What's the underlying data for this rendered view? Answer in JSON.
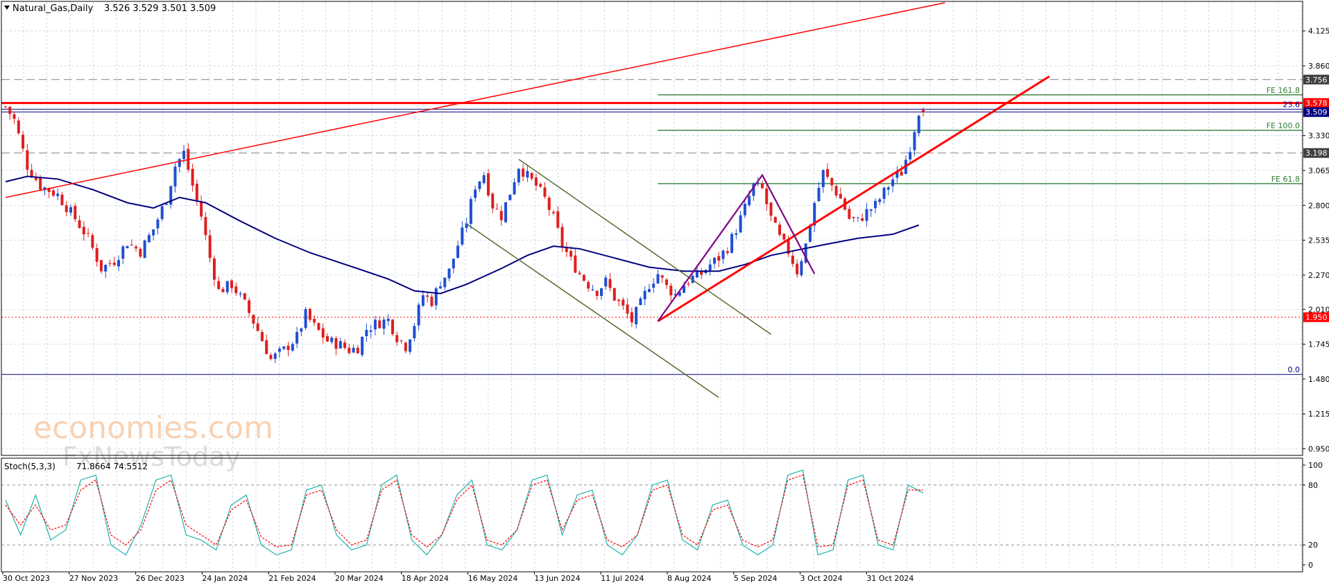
{
  "header": {
    "symbol": "Natural_Gas,Daily",
    "ohlc": "3.526 3.529 3.501 3.509"
  },
  "watermark": {
    "brand": "economies.com",
    "sub": "FxNewsToday"
  },
  "chart_data": [
    {
      "type": "candlestick",
      "title": "Natural_Gas,Daily",
      "ohlc_last": {
        "open": 3.526,
        "high": 3.529,
        "low": 3.501,
        "close": 3.509
      },
      "x_tick_labels": [
        "30 Oct 2023",
        "27 Nov 2023",
        "26 Dec 2023",
        "24 Jan 2024",
        "21 Feb 2024",
        "20 Mar 2024",
        "18 Apr 2024",
        "16 May 2024",
        "13 Jun 2024",
        "11 Jul 2024",
        "8 Aug 2024",
        "5 Sep 2024",
        "3 Oct 2024",
        "31 Oct 2024"
      ],
      "y_tick_labels": [
        "4.125",
        "3.860",
        "3.330",
        "3.065",
        "2.800",
        "2.535",
        "2.270",
        "2.010",
        "1.745",
        "1.480",
        "1.215",
        "0.950"
      ],
      "ylim": [
        0.9,
        4.35
      ],
      "grid": true,
      "close_path": [
        [
          0,
          3.55
        ],
        [
          2,
          3.45
        ],
        [
          5,
          3.1
        ],
        [
          8,
          2.95
        ],
        [
          12,
          2.88
        ],
        [
          16,
          2.7
        ],
        [
          19,
          2.55
        ],
        [
          22,
          2.32
        ],
        [
          25,
          2.38
        ],
        [
          28,
          2.52
        ],
        [
          31,
          2.45
        ],
        [
          34,
          2.62
        ],
        [
          37,
          2.85
        ],
        [
          39,
          3.1
        ],
        [
          41,
          3.2
        ],
        [
          43,
          2.95
        ],
        [
          45,
          2.72
        ],
        [
          47,
          2.4
        ],
        [
          49,
          2.15
        ],
        [
          52,
          2.2
        ],
        [
          55,
          2.05
        ],
        [
          58,
          1.85
        ],
        [
          61,
          1.63
        ],
        [
          64,
          1.7
        ],
        [
          67,
          1.8
        ],
        [
          69,
          1.97
        ],
        [
          71,
          1.88
        ],
        [
          74,
          1.77
        ],
        [
          77,
          1.74
        ],
        [
          79,
          1.7
        ],
        [
          81,
          1.72
        ],
        [
          83,
          1.86
        ],
        [
          85,
          1.9
        ],
        [
          88,
          1.93
        ],
        [
          90,
          1.8
        ],
        [
          92,
          1.73
        ],
        [
          94,
          1.9
        ],
        [
          96,
          2.12
        ],
        [
          98,
          2.07
        ],
        [
          100,
          2.22
        ],
        [
          102,
          2.3
        ],
        [
          104,
          2.5
        ],
        [
          106,
          2.68
        ],
        [
          108,
          2.95
        ],
        [
          110,
          3.04
        ],
        [
          112,
          2.8
        ],
        [
          114,
          2.72
        ],
        [
          116,
          2.9
        ],
        [
          118,
          3.1
        ],
        [
          120,
          3.02
        ],
        [
          122,
          2.95
        ],
        [
          124,
          2.85
        ],
        [
          126,
          2.7
        ],
        [
          128,
          2.5
        ],
        [
          130,
          2.38
        ],
        [
          132,
          2.28
        ],
        [
          134,
          2.2
        ],
        [
          136,
          2.15
        ],
        [
          138,
          2.22
        ],
        [
          140,
          2.1
        ],
        [
          142,
          2.02
        ],
        [
          144,
          1.92
        ],
        [
          146,
          2.05
        ],
        [
          148,
          2.2
        ],
        [
          150,
          2.28
        ],
        [
          152,
          2.18
        ],
        [
          154,
          2.12
        ],
        [
          156,
          2.2
        ],
        [
          158,
          2.25
        ],
        [
          160,
          2.28
        ],
        [
          162,
          2.35
        ],
        [
          164,
          2.4
        ],
        [
          166,
          2.48
        ],
        [
          168,
          2.62
        ],
        [
          170,
          2.78
        ],
        [
          172,
          2.95
        ],
        [
          174,
          2.92
        ],
        [
          176,
          2.7
        ],
        [
          178,
          2.55
        ],
        [
          180,
          2.45
        ],
        [
          182,
          2.3
        ],
        [
          184,
          2.5
        ],
        [
          186,
          2.82
        ],
        [
          188,
          3.05
        ],
        [
          190,
          2.95
        ],
        [
          192,
          2.85
        ],
        [
          194,
          2.7
        ],
        [
          196,
          2.68
        ],
        [
          198,
          2.75
        ],
        [
          200,
          2.8
        ],
        [
          202,
          2.9
        ],
        [
          204,
          3.0
        ],
        [
          206,
          3.05
        ],
        [
          208,
          3.25
        ],
        [
          210,
          3.52
        ],
        [
          211,
          3.51
        ]
      ],
      "series": [
        {
          "name": "",
          "color": "#000080",
          "values": [
            [
              0,
              2.98
            ],
            [
              5,
              3.02
            ],
            [
              12,
              3.0
            ],
            [
              20,
              2.92
            ],
            [
              28,
              2.82
            ],
            [
              34,
              2.78
            ],
            [
              40,
              2.86
            ],
            [
              46,
              2.82
            ],
            [
              54,
              2.68
            ],
            [
              62,
              2.55
            ],
            [
              70,
              2.44
            ],
            [
              80,
              2.33
            ],
            [
              88,
              2.24
            ],
            [
              94,
              2.15
            ],
            [
              100,
              2.13
            ],
            [
              106,
              2.2
            ],
            [
              114,
              2.32
            ],
            [
              120,
              2.42
            ],
            [
              126,
              2.49
            ],
            [
              132,
              2.47
            ],
            [
              140,
              2.4
            ],
            [
              148,
              2.33
            ],
            [
              156,
              2.3
            ],
            [
              164,
              2.3
            ],
            [
              170,
              2.35
            ],
            [
              176,
              2.42
            ],
            [
              182,
              2.46
            ],
            [
              188,
              2.5
            ],
            [
              196,
              2.55
            ],
            [
              204,
              2.58
            ],
            [
              210,
              2.65
            ]
          ]
        }
      ],
      "horizontal_levels": [
        {
          "value": 3.756,
          "label": "3.756",
          "style": "dashed",
          "color": "#808080"
        },
        {
          "value": 3.198,
          "label": "3.198",
          "style": "dashed",
          "color": "#808080"
        },
        {
          "value": 3.578,
          "label": "3.578",
          "style": "solid",
          "color": "#ff0000"
        },
        {
          "value": 3.509,
          "label": "3.509",
          "style": "solid",
          "color": "#000080"
        },
        {
          "value": 1.95,
          "label": "1.950",
          "style": "dotted",
          "color": "#ff0000"
        }
      ],
      "fibonacci_levels": [
        {
          "value": 3.64,
          "label": "FE 161.8"
        },
        {
          "value": 3.37,
          "label": "FE 100.0"
        },
        {
          "value": 2.965,
          "label": "FE 61.8"
        }
      ],
      "retracement_labels": [
        {
          "value": 3.53,
          "label": "23.6"
        },
        {
          "value": 1.515,
          "label": "0.0"
        }
      ],
      "trendlines": [
        {
          "color": "#ff0000",
          "from": [
            0,
            2.86
          ],
          "to": [
            216,
            4.34
          ]
        },
        {
          "color": "#ff0000",
          "from": [
            150,
            1.92
          ],
          "to": [
            240,
            3.78
          ]
        },
        {
          "color": "#556b2f",
          "from": [
            118,
            3.15
          ],
          "to": [
            176,
            1.82
          ]
        },
        {
          "color": "#556b2f",
          "from": [
            106,
            2.66
          ],
          "to": [
            164,
            1.34
          ]
        }
      ],
      "zigzag": {
        "color": "#800080",
        "points": [
          [
            150,
            1.92
          ],
          [
            174,
            3.03
          ],
          [
            186,
            2.28
          ]
        ]
      }
    },
    {
      "type": "line",
      "title": "Stoch(5,3,3)",
      "values_label": "71.8664 74.5512",
      "ylim": [
        0,
        100
      ],
      "y_tick_labels": [
        "100",
        "80",
        "20",
        "0"
      ],
      "levels": [
        80,
        20
      ],
      "series": [
        {
          "name": "",
          "color": "#20b2aa",
          "values": [
            65,
            30,
            70,
            25,
            35,
            85,
            90,
            20,
            10,
            40,
            85,
            90,
            30,
            25,
            15,
            60,
            70,
            20,
            10,
            15,
            75,
            80,
            30,
            15,
            20,
            80,
            90,
            25,
            10,
            30,
            70,
            85,
            20,
            15,
            35,
            85,
            90,
            30,
            70,
            75,
            20,
            10,
            30,
            80,
            85,
            25,
            15,
            60,
            65,
            20,
            10,
            20,
            90,
            95,
            10,
            15,
            85,
            90,
            20,
            15,
            80,
            72
          ]
        },
        {
          "name": "",
          "color": "#ff0000",
          "values": [
            60,
            40,
            60,
            35,
            40,
            75,
            85,
            30,
            20,
            35,
            75,
            85,
            40,
            30,
            20,
            55,
            65,
            28,
            18,
            20,
            70,
            75,
            35,
            20,
            25,
            75,
            85,
            30,
            18,
            30,
            65,
            80,
            25,
            20,
            35,
            80,
            85,
            35,
            65,
            70,
            25,
            18,
            30,
            75,
            80,
            30,
            20,
            55,
            60,
            25,
            18,
            25,
            85,
            90,
            18,
            20,
            80,
            85,
            25,
            20,
            75,
            75
          ]
        }
      ]
    }
  ]
}
